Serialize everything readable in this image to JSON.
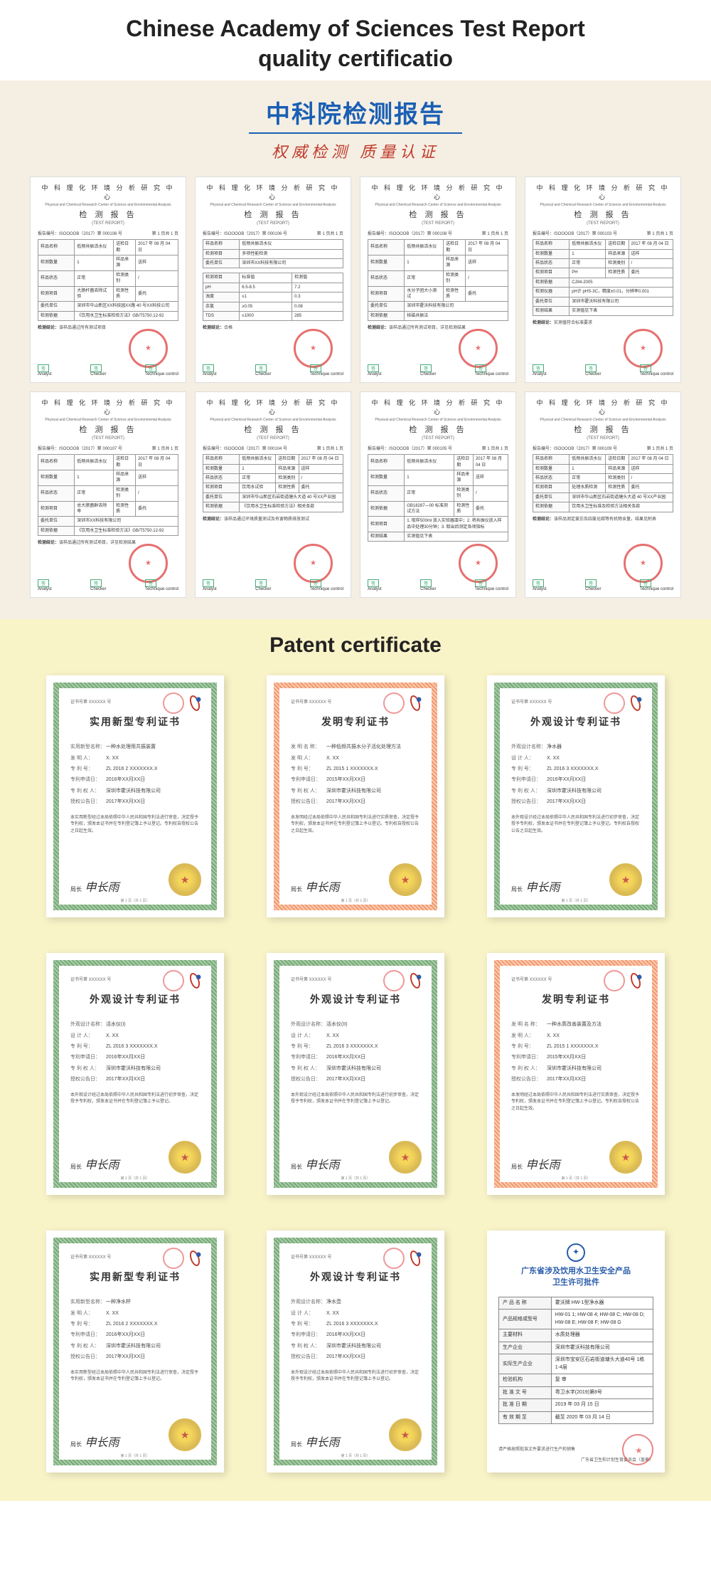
{
  "section1": {
    "title_line1": "Chinese Academy of Sciences Test Report",
    "title_line2": "quality certificatio",
    "cn_title": "中科院检测报告",
    "cn_subtitle": "权威检测  质量认证",
    "report_header": "中 科 理 化 环 境 分 析 研 究 中 心",
    "report_sub": "Physical and Chemical Research Center of Science and Environmental Analysis",
    "report_main": "检 测 报 告",
    "report_main_en": "(TEST  REPORT)",
    "report_no_prefix": "报告编号：ISOOOOB（2017）第 000106 号",
    "page_label": "第 1 页共 1 页",
    "footer_labels": {
      "analyst": "Analyst",
      "checker": "Checker",
      "tech": "Technique control"
    },
    "reports": [
      {
        "no": "000106",
        "fields": [
          [
            "样品名称",
            "低频共振活水仪"
          ],
          [
            "检测数量",
            "1"
          ],
          [
            "样品状态",
            "正常"
          ],
          [
            "检测项目",
            "大肠杆菌去除试验"
          ],
          [
            "委托单位",
            "深圳市华山新区XX科技园XX路 40 号XX科技公司"
          ],
          [
            "检测依据",
            "《饮用水卫生标准检验方法》GB/T5750.12-92"
          ]
        ],
        "dates": [
          [
            "送检日期",
            "2017 年 08 月 04 日"
          ],
          [
            "样品来源",
            "送样"
          ],
          [
            "检测类别",
            "/"
          ],
          [
            "检测性质",
            "委托"
          ]
        ],
        "result": "该样品通过所有测试项目"
      },
      {
        "no": "000106",
        "fields": [
          [
            "样品名称",
            "低频共振活水仪"
          ],
          [
            "检测项目",
            "多项性能检测"
          ],
          [
            "委托单位",
            "深圳市XX科技有限公司"
          ]
        ],
        "table": [
          [
            "检测项目",
            "标准值",
            "检测值"
          ],
          [
            "pH",
            "6.5-8.5",
            "7.2"
          ],
          [
            "浊度",
            "≤1",
            "0.3"
          ],
          [
            "余氯",
            "≥0.05",
            "0.08"
          ],
          [
            "TDS",
            "≤1000",
            "285"
          ]
        ],
        "result": "合格"
      },
      {
        "no": "000108",
        "fields": [
          [
            "样品名称",
            "低频共振活水仪"
          ],
          [
            "检测数量",
            "1"
          ],
          [
            "样品状态",
            "正常"
          ],
          [
            "检测项目",
            "水分子团大小测试"
          ],
          [
            "委托单位",
            "深圳市霍沃科技有限公司"
          ],
          [
            "检测依据",
            "核磁共振法"
          ]
        ],
        "dates": [
          [
            "送检日期",
            "2017 年 08 月 04 日"
          ],
          [
            "样品来源",
            "送样"
          ],
          [
            "检测类别",
            "/"
          ],
          [
            "检测性质",
            "委托"
          ]
        ],
        "result": "该样品通过所有测试项目，详见检测结果"
      },
      {
        "no": "000103",
        "fields": [
          [
            "样品名称",
            "低频共振活水仪"
          ],
          [
            "检测数量",
            "1"
          ],
          [
            "样品状态",
            "正常"
          ],
          [
            "检测项目",
            "PH"
          ],
          [
            "检测依据",
            "CJ94-2005"
          ],
          [
            "检测仪器",
            "pH计 pHS-3C，精度±0.01，分辨率0.001"
          ],
          [
            "委托单位",
            "深圳市霍沃科技有限公司"
          ],
          [
            "检测结果",
            "实测值见下表"
          ]
        ],
        "dates": [
          [
            "送检日期",
            "2017 年 08 月 04 日"
          ],
          [
            "样品来源",
            "送样"
          ],
          [
            "检测类别",
            "/"
          ],
          [
            "检测性质",
            "委托"
          ]
        ],
        "result": "实测值符合标准要求"
      },
      {
        "no": "000107",
        "fields": [
          [
            "样品名称",
            "低频共振活水仪"
          ],
          [
            "检测数量",
            "1"
          ],
          [
            "样品状态",
            "正常"
          ],
          [
            "检测项目",
            "总大肠菌群去除率"
          ],
          [
            "委托单位",
            "深圳市XX科技有限公司"
          ],
          [
            "检测依据",
            "《饮用水卫生标准检验方法》GB/T5750.12-92"
          ]
        ],
        "dates": [
          [
            "送检日期",
            "2017 年 08 月 04 日"
          ],
          [
            "样品来源",
            "送样"
          ],
          [
            "检测类别",
            "/"
          ],
          [
            "检测性质",
            "委托"
          ]
        ],
        "result": "该样品通过所有测试项目，详见检测结果"
      },
      {
        "no": "000104",
        "fields": [
          [
            "样品名称",
            "低频共振活水仪"
          ],
          [
            "检测数量",
            "1"
          ],
          [
            "样品状态",
            "正常"
          ],
          [
            "检测项目",
            "饮用水试验"
          ],
          [
            "委托单位",
            "深圳市华山新区石岩街道塘头大道 40 号XX产业园"
          ],
          [
            "检测依据",
            "《饮用水卫生标准检验方法》相关条款"
          ]
        ],
        "dates": [
          [
            "送检日期",
            "2017 年 08 月 04 日"
          ],
          [
            "样品来源",
            "送样"
          ],
          [
            "检测类别",
            "/"
          ],
          [
            "检测性质",
            "委托"
          ]
        ],
        "result": "该样品通过环境质量测试及有害物质排放测试"
      },
      {
        "no": "000105",
        "fields": [
          [
            "样品名称",
            "低频共振活水仪"
          ],
          [
            "检测数量",
            "1"
          ],
          [
            "样品状态",
            "正常"
          ],
          [
            "检测依据",
            "GB18287—00 标准测试方法"
          ],
          [
            "检测项目",
            "1. 取样500ml 放入实验器皿中；2. 将共振仪放入样品中处理30分钟；3. 取出后测定各项指标"
          ],
          [
            "检测结果",
            "实测值见下表"
          ]
        ],
        "dates": [
          [
            "送检日期",
            "2017 年 08 月 04 日"
          ],
          [
            "样品来源",
            "送样"
          ],
          [
            "检测类别",
            "/"
          ],
          [
            "检测性质",
            "委托"
          ]
        ]
      },
      {
        "no": "000109",
        "fields": [
          [
            "样品名称",
            "低频共振活水仪"
          ],
          [
            "检测数量",
            "1"
          ],
          [
            "样品状态",
            "正常"
          ],
          [
            "检测项目",
            "处理水质检测"
          ],
          [
            "委托单位",
            "深圳市华山新区石岩街道塘头大道 40 号XX产业园"
          ],
          [
            "检测依据",
            "饮用水卫生标准及检验方法相关条款"
          ]
        ],
        "dates": [
          [
            "送检日期",
            "2017 年 08 月 04 日"
          ],
          [
            "样品来源",
            "送样"
          ],
          [
            "检测类别",
            "/"
          ],
          [
            "检测性质",
            "委托"
          ]
        ],
        "result": "该样品测定氯仿及四氯化碳等有机物含量，结果见附表"
      }
    ]
  },
  "section2": {
    "title": "Patent certificate",
    "sig_label": "局长",
    "sig_name": "申长雨",
    "cert_no_prefix": "证书号第",
    "patents": [
      {
        "type": "实用新型专利证书",
        "border": "green",
        "fields": [
          [
            "实用新型名称",
            "一种水处理用共振装置"
          ],
          [
            "发 明 人",
            "X. XX"
          ],
          [
            "专 利 号",
            "ZL 2016 2 XXXXXXX.X"
          ],
          [
            "专利申请日",
            "2016年XX月XX日"
          ],
          [
            "专 利 权 人",
            "深圳市霍沃科技有限公司"
          ],
          [
            "授权公告日",
            "2017年XX月XX日"
          ]
        ],
        "desc": "本实用新型经过本局依照中华人民共和国专利法进行审查，决定授予专利权，颁发本证书并在专利登记簿上予以登记。专利权自授权公告之日起生效。"
      },
      {
        "type": "发明专利证书",
        "border": "orange",
        "fields": [
          [
            "发 明 名 称",
            "一种低频共振水分子活化处理方法"
          ],
          [
            "发 明 人",
            "X. XX"
          ],
          [
            "专 利 号",
            "ZL 2015 1 XXXXXXX.X"
          ],
          [
            "专利申请日",
            "2015年XX月XX日"
          ],
          [
            "专 利 权 人",
            "深圳市霍沃科技有限公司"
          ],
          [
            "授权公告日",
            "2017年XX月XX日"
          ]
        ],
        "desc": "本发明经过本局依照中华人民共和国专利法进行实质审查，决定授予专利权，颁发本证书并在专利登记簿上予以登记。专利权自授权公告之日起生效。"
      },
      {
        "type": "外观设计专利证书",
        "border": "green",
        "fields": [
          [
            "外观设计名称",
            "净水器"
          ],
          [
            "设 计 人",
            "X. XX"
          ],
          [
            "专 利 号",
            "ZL 2016 3 XXXXXXX.X"
          ],
          [
            "专利申请日",
            "2016年XX月XX日"
          ],
          [
            "专 利 权 人",
            "深圳市霍沃科技有限公司"
          ],
          [
            "授权公告日",
            "2017年XX月XX日"
          ]
        ],
        "desc": "本外观设计经过本局依照中华人民共和国专利法进行初步审查，决定授予专利权，颁发本证书并在专利登记簿上予以登记。专利权自授权公告之日起生效。"
      },
      {
        "type": "外观设计专利证书",
        "border": "green",
        "fields": [
          [
            "外观设计名称",
            "活水仪(I)"
          ],
          [
            "设 计 人",
            "X. XX"
          ],
          [
            "专 利 号",
            "ZL 2016 3 XXXXXXX.X"
          ],
          [
            "专利申请日",
            "2016年XX月XX日"
          ],
          [
            "专 利 权 人",
            "深圳市霍沃科技有限公司"
          ],
          [
            "授权公告日",
            "2017年XX月XX日"
          ]
        ],
        "desc": "本外观设计经过本局依照中华人民共和国专利法进行初步审查，决定授予专利权，颁发本证书并在专利登记簿上予以登记。"
      },
      {
        "type": "外观设计专利证书",
        "border": "green",
        "fields": [
          [
            "外观设计名称",
            "活水仪(II)"
          ],
          [
            "设 计 人",
            "X. XX"
          ],
          [
            "专 利 号",
            "ZL 2016 3 XXXXXXX.X"
          ],
          [
            "专利申请日",
            "2016年XX月XX日"
          ],
          [
            "专 利 权 人",
            "深圳市霍沃科技有限公司"
          ],
          [
            "授权公告日",
            "2017年XX月XX日"
          ]
        ],
        "desc": "本外观设计经过本局依照中华人民共和国专利法进行初步审查，决定授予专利权，颁发本证书并在专利登记簿上予以登记。"
      },
      {
        "type": "发明专利证书",
        "border": "orange",
        "fields": [
          [
            "发 明 名 称",
            "一种水质改善装置及方法"
          ],
          [
            "发 明 人",
            "X. XX"
          ],
          [
            "专 利 号",
            "ZL 2015 1 XXXXXXX.X"
          ],
          [
            "专利申请日",
            "2015年XX月XX日"
          ],
          [
            "专 利 权 人",
            "深圳市霍沃科技有限公司"
          ],
          [
            "授权公告日",
            "2017年XX月XX日"
          ]
        ],
        "desc": "本发明经过本局依照中华人民共和国专利法进行实质审查，决定授予专利权，颁发本证书并在专利登记簿上予以登记。专利权自授权公告之日起生效。"
      },
      {
        "type": "实用新型专利证书",
        "border": "green",
        "fields": [
          [
            "实用新型名称",
            "一种净水杯"
          ],
          [
            "发 明 人",
            "X. XX"
          ],
          [
            "专 利 号",
            "ZL 2016 2 XXXXXXX.X"
          ],
          [
            "专利申请日",
            "2016年XX月XX日"
          ],
          [
            "专 利 权 人",
            "深圳市霍沃科技有限公司"
          ],
          [
            "授权公告日",
            "2017年XX月XX日"
          ]
        ],
        "desc": "本实用新型经过本局依照中华人民共和国专利法进行审查，决定授予专利权，颁发本证书并在专利登记簿上予以登记。"
      },
      {
        "type": "外观设计专利证书",
        "border": "green",
        "fields": [
          [
            "外观设计名称",
            "净水壶"
          ],
          [
            "设 计 人",
            "X. XX"
          ],
          [
            "专 利 号",
            "ZL 2016 3 XXXXXXX.X"
          ],
          [
            "专利申请日",
            "2016年XX月XX日"
          ],
          [
            "专 利 权 人",
            "深圳市霍沃科技有限公司"
          ],
          [
            "授权公告日",
            "2017年XX月XX日"
          ]
        ],
        "desc": "本外观设计经过本局依照中华人民共和国专利法进行初步审查，决定授予专利权，颁发本证书并在专利登记簿上予以登记。"
      }
    ],
    "license": {
      "title_line1": "广东省涉及饮用水卫生安全产品",
      "title_line2": "卫生许可批件",
      "fields": [
        [
          "产 品 名 称",
          "霍沃牌 HW-1型净水器"
        ],
        [
          "产品规格或型号",
          "HW-01 1; HW-08 4; HW-08 C; HW-08 D; HW-08 E; HW-08 F; HW-08 G"
        ],
        [
          "主要材料",
          "水质处理器"
        ],
        [
          "生产企业",
          "深圳市霍沃科技有限公司"
        ],
        [
          "实际生产企业",
          "深圳市宝安区石岩街道塘头大道40号 1栋 1-4层"
        ],
        [
          "检验机构",
          "复 审"
        ],
        [
          "批 准 文 号",
          "粤卫水字(2019)第8号"
        ],
        [
          "批 准 日 期",
          "2019 年 03 月 15 日"
        ],
        [
          "有 效 期 至",
          "截至 2020 年 03 月 14 日"
        ]
      ],
      "footer1": "请严格按照批准文件要求进行生产和销售",
      "footer2": "广东省卫生和计划生育委员会（盖章）"
    }
  },
  "colors": {
    "beige_bg": "#f5efe3",
    "yellow_bg": "#f9f3c8",
    "blue": "#1a5fb4",
    "red": "#c0392b",
    "stamp_red": "#d33",
    "gold": "#d4af37",
    "license_blue": "#2a5caa"
  }
}
